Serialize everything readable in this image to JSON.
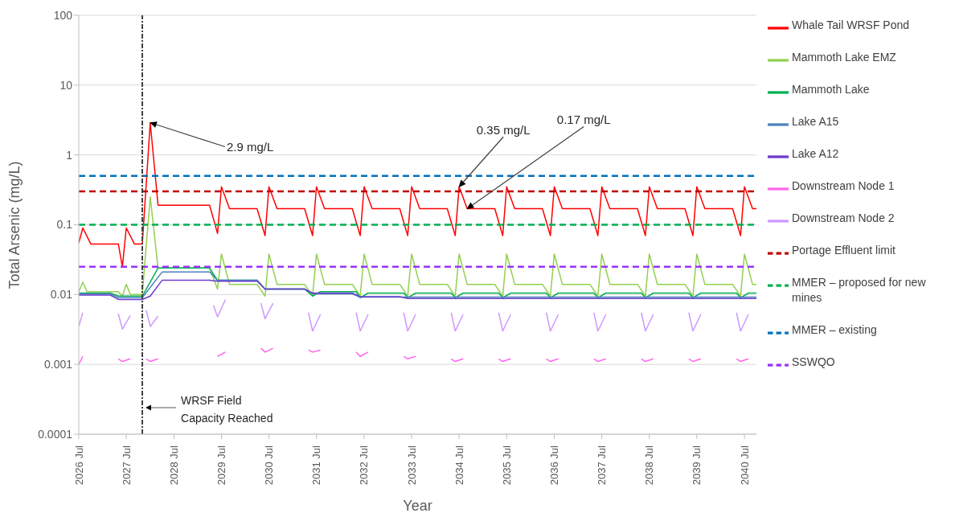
{
  "chart_data": {
    "type": "line",
    "xlabel": "Year",
    "ylabel": "Total Arsenic (mg/L)",
    "log": "y",
    "grid": "y",
    "legend": "right",
    "marker": "none",
    "xlim": [
      "2026-07",
      "2040-10"
    ],
    "xticks": [
      {
        "value": "2026-07",
        "label": "2026 Jul"
      },
      {
        "value": "2027-07",
        "label": "2027 Jul"
      },
      {
        "value": "2028-07",
        "label": "2028 Jul"
      },
      {
        "value": "2029-07",
        "label": "2029 Jul"
      },
      {
        "value": "2030-07",
        "label": "2030 Jul"
      },
      {
        "value": "2031-07",
        "label": "2031 Jul"
      },
      {
        "value": "2032-07",
        "label": "2032 Jul"
      },
      {
        "value": "2033-07",
        "label": "2033 Jul"
      },
      {
        "value": "2034-07",
        "label": "2034 Jul"
      },
      {
        "value": "2035-07",
        "label": "2035 Jul"
      },
      {
        "value": "2036-07",
        "label": "2036 Jul"
      },
      {
        "value": "2037-07",
        "label": "2037 Jul"
      },
      {
        "value": "2038-07",
        "label": "2038 Jul"
      },
      {
        "value": "2039-07",
        "label": "2039 Jul"
      },
      {
        "value": "2040-07",
        "label": "2040 Jul"
      }
    ],
    "ylim": [
      0.0001,
      100
    ],
    "yticks": [
      0.0001,
      0.001,
      0.01,
      0.1,
      1,
      10,
      100
    ],
    "series": [
      {
        "name": "Whale Tail WRSF Pond",
        "color": "#ff0000",
        "line_style": "solid",
        "x": [
          "2026-07",
          "2026-08",
          "2026-10",
          "2027-05",
          "2027-06",
          "2027-07",
          "2027-09",
          "2027-11",
          "2028-01",
          "2028-03",
          "2029-04",
          "2029-06",
          "2029-07",
          "2029-09",
          "2030-04",
          "2030-06",
          "2030-07",
          "2030-09",
          "2031-04",
          "2031-06",
          "2031-07",
          "2031-09",
          "2032-04",
          "2032-06",
          "2032-07",
          "2032-09",
          "2033-04",
          "2033-06",
          "2033-07",
          "2033-09",
          "2034-04",
          "2034-06",
          "2034-07",
          "2034-09",
          "2035-04",
          "2035-06",
          "2035-07",
          "2035-09",
          "2036-04",
          "2036-06",
          "2036-07",
          "2036-09",
          "2037-04",
          "2037-06",
          "2037-07",
          "2037-09",
          "2038-04",
          "2038-06",
          "2038-07",
          "2038-09",
          "2039-04",
          "2039-06",
          "2039-07",
          "2039-09",
          "2040-04",
          "2040-06",
          "2040-07",
          "2040-09",
          "2040-10"
        ],
        "values": [
          0.055,
          0.09,
          0.053,
          0.053,
          0.025,
          0.09,
          0.053,
          0.053,
          2.9,
          0.19,
          0.19,
          0.075,
          0.35,
          0.17,
          0.17,
          0.07,
          0.35,
          0.17,
          0.17,
          0.07,
          0.35,
          0.17,
          0.17,
          0.07,
          0.35,
          0.17,
          0.17,
          0.07,
          0.35,
          0.17,
          0.17,
          0.07,
          0.35,
          0.17,
          0.17,
          0.07,
          0.35,
          0.17,
          0.17,
          0.07,
          0.35,
          0.17,
          0.17,
          0.07,
          0.35,
          0.17,
          0.17,
          0.07,
          0.35,
          0.17,
          0.17,
          0.07,
          0.35,
          0.17,
          0.17,
          0.07,
          0.35,
          0.17,
          0.17
        ]
      },
      {
        "name": "Mammoth Lake EMZ",
        "color": "#92d050",
        "line_style": "solid",
        "x": [
          "2026-07",
          "2026-08",
          "2026-09",
          "2027-05",
          "2027-06",
          "2027-07",
          "2027-08",
          "2027-11",
          "2027-12",
          "2028-01",
          "2028-03",
          "2029-04",
          "2029-06",
          "2029-07",
          "2029-09",
          "2030-04",
          "2030-06",
          "2030-07",
          "2030-09",
          "2031-04",
          "2031-06",
          "2031-07",
          "2031-09",
          "2032-04",
          "2032-06",
          "2032-07",
          "2032-09",
          "2033-04",
          "2033-06",
          "2033-07",
          "2033-09",
          "2034-04",
          "2034-06",
          "2034-07",
          "2034-09",
          "2035-04",
          "2035-06",
          "2035-07",
          "2035-09",
          "2036-04",
          "2036-06",
          "2036-07",
          "2036-09",
          "2037-04",
          "2037-06",
          "2037-07",
          "2037-09",
          "2038-04",
          "2038-06",
          "2038-07",
          "2038-09",
          "2039-04",
          "2039-06",
          "2039-07",
          "2039-09",
          "2040-04",
          "2040-06",
          "2040-07",
          "2040-09",
          "2040-10"
        ],
        "values": [
          0.011,
          0.015,
          0.011,
          0.011,
          0.0095,
          0.014,
          0.01,
          0.01,
          0.05,
          0.25,
          0.024,
          0.024,
          0.012,
          0.038,
          0.014,
          0.014,
          0.0095,
          0.038,
          0.014,
          0.014,
          0.0095,
          0.038,
          0.014,
          0.014,
          0.0095,
          0.038,
          0.014,
          0.014,
          0.0095,
          0.038,
          0.014,
          0.014,
          0.0095,
          0.038,
          0.014,
          0.014,
          0.0095,
          0.038,
          0.014,
          0.014,
          0.0095,
          0.038,
          0.014,
          0.014,
          0.0095,
          0.038,
          0.014,
          0.014,
          0.0095,
          0.038,
          0.014,
          0.014,
          0.0095,
          0.038,
          0.014,
          0.014,
          0.0095,
          0.038,
          0.014,
          0.014
        ]
      },
      {
        "name": "Mammoth Lake",
        "color": "#00b050",
        "line_style": "solid",
        "x": [
          "2026-07",
          "2027-03",
          "2027-05",
          "2027-11",
          "2028-03",
          "2029-04",
          "2029-06",
          "2030-04",
          "2030-06",
          "2031-04",
          "2031-06",
          "2031-08",
          "2032-05",
          "2032-06",
          "2032-08",
          "2033-05",
          "2033-06",
          "2033-08",
          "2034-05",
          "2034-06",
          "2034-08",
          "2035-05",
          "2035-06",
          "2035-08",
          "2036-05",
          "2036-06",
          "2036-08",
          "2037-05",
          "2037-06",
          "2037-08",
          "2038-05",
          "2038-06",
          "2038-08",
          "2039-05",
          "2039-06",
          "2039-08",
          "2040-05",
          "2040-06",
          "2040-08",
          "2040-10"
        ],
        "values": [
          0.0105,
          0.0105,
          0.0095,
          0.0095,
          0.024,
          0.024,
          0.016,
          0.016,
          0.012,
          0.012,
          0.0095,
          0.011,
          0.011,
          0.009,
          0.0105,
          0.0105,
          0.009,
          0.0105,
          0.0105,
          0.009,
          0.0105,
          0.0105,
          0.009,
          0.0105,
          0.0105,
          0.009,
          0.0105,
          0.0105,
          0.009,
          0.0105,
          0.0105,
          0.009,
          0.0105,
          0.0105,
          0.009,
          0.0105,
          0.0105,
          0.009,
          0.0105,
          0.0105
        ]
      },
      {
        "name": "Lake A15",
        "color": "#4f81bd",
        "line_style": "solid",
        "x": [
          "2026-07",
          "2027-03",
          "2027-05",
          "2027-11",
          "2028-04",
          "2029-04",
          "2029-06",
          "2030-04",
          "2030-06",
          "2031-04",
          "2031-06",
          "2032-04",
          "2032-06",
          "2040-10"
        ],
        "values": [
          0.0102,
          0.0102,
          0.009,
          0.009,
          0.021,
          0.021,
          0.016,
          0.016,
          0.012,
          0.012,
          0.0102,
          0.0102,
          0.0092,
          0.0092
        ]
      },
      {
        "name": "Lake A12",
        "color": "#6a3cd0",
        "line_style": "solid",
        "x": [
          "2026-07",
          "2027-03",
          "2027-05",
          "2027-11",
          "2028-01",
          "2028-04",
          "2029-04",
          "2029-06",
          "2030-04",
          "2030-06",
          "2031-04",
          "2031-06",
          "2032-04",
          "2032-06",
          "2033-04",
          "2033-06",
          "2040-10"
        ],
        "values": [
          0.0098,
          0.0098,
          0.0085,
          0.0085,
          0.0095,
          0.016,
          0.016,
          0.0155,
          0.0155,
          0.012,
          0.012,
          0.0105,
          0.0105,
          0.0093,
          0.0093,
          0.0088,
          0.0088
        ]
      },
      {
        "name": "Downstream Node 1",
        "color": "#ff66ee",
        "line_style": "solid",
        "x": [
          "2026-07",
          "2026-08",
          "2026-09",
          "2027-05",
          "2027-06",
          "2027-08",
          "2027-09",
          "2027-12",
          "2028-01",
          "2028-03",
          "2028-04",
          "2029-06",
          "2029-08",
          "2029-09",
          "2030-05",
          "2030-06",
          "2030-08",
          "2030-09",
          "2031-05",
          "2031-06",
          "2031-08",
          "2031-09",
          "2032-05",
          "2032-06",
          "2032-08",
          "2032-09",
          "2033-05",
          "2033-06",
          "2033-08",
          "2033-09",
          "2034-05",
          "2034-06",
          "2034-08",
          "2034-09",
          "2035-05",
          "2035-06",
          "2035-08",
          "2035-09",
          "2036-05",
          "2036-06",
          "2036-08",
          "2036-09",
          "2037-05",
          "2037-06",
          "2037-08",
          "2037-09",
          "2038-05",
          "2038-06",
          "2038-08",
          "2038-09",
          "2039-05",
          "2039-06",
          "2039-08",
          "2039-09",
          "2040-05",
          "2040-06",
          "2040-08"
        ],
        "values": [
          0.001,
          0.0013,
          null,
          0.0012,
          0.0011,
          0.0012,
          null,
          0.0012,
          0.0011,
          0.0012,
          null,
          0.0013,
          0.0015,
          null,
          0.0017,
          0.0015,
          0.0017,
          null,
          0.0016,
          0.0015,
          0.0016,
          null,
          0.0015,
          0.0013,
          0.0015,
          null,
          0.0013,
          0.0012,
          0.0013,
          null,
          0.0012,
          0.0011,
          0.0012,
          null,
          0.0012,
          0.0011,
          0.0012,
          null,
          0.0012,
          0.0011,
          0.0012,
          null,
          0.0012,
          0.0011,
          0.0012,
          null,
          0.0012,
          0.0011,
          0.0012,
          null,
          0.0012,
          0.0011,
          0.0012,
          null,
          0.0012,
          0.0011,
          0.0012
        ]
      },
      {
        "name": "Downstream Node 2",
        "color": "#cc99ff",
        "line_style": "solid",
        "x": [
          "2026-07",
          "2026-08",
          "2026-09",
          "2027-05",
          "2027-06",
          "2027-08",
          "2027-09",
          "2027-12",
          "2028-01",
          "2028-03",
          "2028-04",
          "2029-05",
          "2029-06",
          "2029-08",
          "2029-09",
          "2030-05",
          "2030-06",
          "2030-08",
          "2030-09",
          "2031-05",
          "2031-06",
          "2031-08",
          "2031-09",
          "2032-05",
          "2032-06",
          "2032-08",
          "2032-09",
          "2033-05",
          "2033-06",
          "2033-08",
          "2033-09",
          "2034-05",
          "2034-06",
          "2034-08",
          "2034-09",
          "2035-05",
          "2035-06",
          "2035-08",
          "2035-09",
          "2036-05",
          "2036-06",
          "2036-08",
          "2036-09",
          "2037-05",
          "2037-06",
          "2037-08",
          "2037-09",
          "2038-05",
          "2038-06",
          "2038-08",
          "2038-09",
          "2039-05",
          "2039-06",
          "2039-08",
          "2039-09",
          "2040-05",
          "2040-06",
          "2040-08"
        ],
        "values": [
          0.0035,
          0.0055,
          null,
          0.0053,
          0.0032,
          0.005,
          null,
          0.006,
          0.0035,
          0.0049,
          null,
          0.007,
          0.0048,
          0.0085,
          null,
          0.0075,
          0.0045,
          0.0075,
          null,
          0.0055,
          0.003,
          0.0052,
          null,
          0.0055,
          0.003,
          0.0052,
          null,
          0.0055,
          0.003,
          0.0052,
          null,
          0.0055,
          0.003,
          0.0052,
          null,
          0.0055,
          0.003,
          0.0052,
          null,
          0.0055,
          0.003,
          0.0052,
          null,
          0.0055,
          0.003,
          0.0052,
          null,
          0.0055,
          0.003,
          0.0052,
          null,
          0.0055,
          0.003,
          0.0052,
          null,
          0.0055,
          0.003,
          0.0052
        ]
      },
      {
        "name": "Portage Effluent limit",
        "color": "#c00000",
        "line_style": "dashed",
        "x": [
          "2026-07",
          "2040-10"
        ],
        "values": [
          0.3,
          0.3
        ]
      },
      {
        "name": "MMER – proposed for new mines",
        "color": "#00b050",
        "line_style": "dashed",
        "x": [
          "2026-07",
          "2040-10"
        ],
        "values": [
          0.1,
          0.1
        ]
      },
      {
        "name": "MMER – existing",
        "color": "#0070c0",
        "line_style": "dashed",
        "x": [
          "2026-07",
          "2040-10"
        ],
        "values": [
          0.5,
          0.5
        ]
      },
      {
        "name": "SSWQO",
        "color": "#9933ff",
        "line_style": "dashed",
        "x": [
          "2026-07",
          "2040-10"
        ],
        "values": [
          0.025,
          0.025
        ]
      }
    ],
    "ref_lines": [
      {
        "axis": "x",
        "value": "2027-11",
        "label": "WRSF Field Capacity Reached",
        "color": "#404040",
        "line_style": "dotted"
      }
    ],
    "annotations": [
      {
        "text": "2.9 mg/L",
        "x": "2028-01",
        "y": 2.9
      },
      {
        "text": "0.35 mg/L",
        "x": "2034-07",
        "y": 0.35
      },
      {
        "text": "0.17 mg/L",
        "x": "2034-09",
        "y": 0.17
      }
    ]
  }
}
